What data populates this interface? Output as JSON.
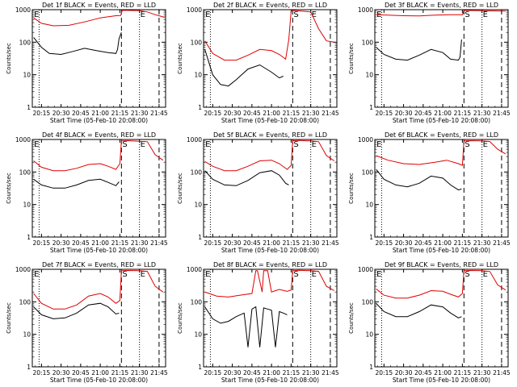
{
  "panel_title_suffix": "BLACK = Events, RED = LLD",
  "xlabel": "Start Time (05-Feb-10 20:08:00)",
  "ylabel": "Counts/sec",
  "x_tick_labels": [
    "20:15",
    "20:30",
    "20:45",
    "21:00",
    "21:15",
    "21:30",
    "21:45"
  ],
  "y_tick_labels": [
    "1",
    "10",
    "100",
    "1000"
  ],
  "marker_labels": [
    "E",
    "S",
    "E"
  ],
  "colors": {
    "events": "#000000",
    "lld": "#e00000"
  },
  "chart_data": [
    {
      "type": "line",
      "title": "Det 1f",
      "xlim": [
        20.1333,
        21.8333
      ],
      "ylim": [
        1,
        1000
      ],
      "log_y": true,
      "x_ticks": [
        20.25,
        20.5,
        20.75,
        21.0,
        21.25,
        21.5,
        21.75
      ],
      "x_tick_labels": [
        "20:15",
        "20:30",
        "20:45",
        "21:00",
        "21:15",
        "21:30",
        "21:45"
      ],
      "y_ticks": [
        1,
        10,
        100,
        1000
      ],
      "markers": {
        "dotted": [
          20.22,
          21.5
        ],
        "dashed": [
          21.27,
          21.75
        ]
      },
      "marker_labels": [
        {
          "x": 20.145,
          "text": "E"
        },
        {
          "x": 21.5,
          "text": "E"
        }
      ],
      "series": [
        {
          "name": "Events",
          "color": "#000000",
          "x": [
            20.15,
            20.25,
            20.35,
            20.5,
            20.65,
            20.8,
            20.95,
            21.1,
            21.2,
            21.22,
            21.24,
            21.27
          ],
          "y": [
            140,
            70,
            45,
            42,
            52,
            65,
            55,
            48,
            45,
            60,
            130,
            200
          ]
        },
        {
          "name": "LLD",
          "color": "#e00000",
          "x": [
            20.15,
            20.25,
            20.4,
            20.6,
            20.8,
            21.0,
            21.2,
            21.26,
            21.28,
            21.35,
            21.5,
            21.6,
            21.7,
            21.78,
            21.82
          ],
          "y": [
            560,
            380,
            320,
            330,
            420,
            560,
            650,
            660,
            950,
            950,
            930,
            850,
            700,
            620,
            580
          ]
        }
      ]
    },
    {
      "type": "line",
      "title": "Det 2f",
      "xlim": [
        20.1333,
        21.8333
      ],
      "ylim": [
        1,
        1000
      ],
      "log_y": true,
      "x_ticks": [
        20.25,
        20.5,
        20.75,
        21.0,
        21.25,
        21.5,
        21.75
      ],
      "x_tick_labels": [
        "20:15",
        "20:30",
        "20:45",
        "21:00",
        "21:15",
        "21:30",
        "21:45"
      ],
      "y_ticks": [
        1,
        10,
        100,
        1000
      ],
      "markers": {
        "dotted": [
          20.22,
          21.5
        ],
        "dashed": [
          21.27,
          21.75
        ]
      },
      "marker_labels": [
        {
          "x": 20.145,
          "text": "E"
        },
        {
          "x": 21.27,
          "text": "S"
        },
        {
          "x": 21.5,
          "text": "E"
        }
      ],
      "series": [
        {
          "name": "Events",
          "color": "#000000",
          "x": [
            20.15,
            20.25,
            20.35,
            20.45,
            20.55,
            20.7,
            20.85,
            21.0,
            21.1,
            21.15
          ],
          "y": [
            60,
            10,
            5,
            4.5,
            7,
            15,
            20,
            12,
            8,
            9
          ]
        },
        {
          "name": "LLD",
          "color": "#e00000",
          "x": [
            20.15,
            20.25,
            20.4,
            20.55,
            20.7,
            20.85,
            21.0,
            21.1,
            21.18,
            21.22,
            21.25,
            21.27,
            21.35,
            21.5,
            21.6,
            21.7,
            21.8
          ],
          "y": [
            110,
            45,
            28,
            28,
            40,
            60,
            55,
            42,
            30,
            120,
            900,
            950,
            920,
            850,
            260,
            110,
            100
          ]
        }
      ]
    },
    {
      "type": "line",
      "title": "Det 3f",
      "xlim": [
        20.1333,
        21.8333
      ],
      "ylim": [
        1,
        1000
      ],
      "log_y": true,
      "x_ticks": [
        20.25,
        20.5,
        20.75,
        21.0,
        21.25,
        21.5,
        21.75
      ],
      "x_tick_labels": [
        "20:15",
        "20:30",
        "20:45",
        "21:00",
        "21:15",
        "21:30",
        "21:45"
      ],
      "y_ticks": [
        1,
        10,
        100,
        1000
      ],
      "markers": {
        "dotted": [
          20.22,
          21.5
        ],
        "dashed": [
          21.27,
          21.75
        ]
      },
      "marker_labels": [
        {
          "x": 20.145,
          "text": "E"
        },
        {
          "x": 21.27,
          "text": "S"
        },
        {
          "x": 21.5,
          "text": "E"
        }
      ],
      "series": [
        {
          "name": "Events",
          "color": "#000000",
          "x": [
            20.15,
            20.25,
            20.4,
            20.55,
            20.7,
            20.85,
            21.0,
            21.1,
            21.2,
            21.22,
            21.24
          ],
          "y": [
            70,
            42,
            30,
            28,
            40,
            60,
            48,
            30,
            28,
            35,
            120
          ]
        },
        {
          "name": "LLD",
          "color": "#e00000",
          "x": [
            20.15,
            20.3,
            20.5,
            20.7,
            20.9,
            21.1,
            21.25,
            21.27,
            21.4,
            21.6,
            21.8
          ],
          "y": [
            700,
            680,
            650,
            640,
            680,
            700,
            700,
            950,
            940,
            920,
            900
          ]
        }
      ]
    },
    {
      "type": "line",
      "title": "Det 4f",
      "xlim": [
        20.1333,
        21.8333
      ],
      "ylim": [
        1,
        1000
      ],
      "log_y": true,
      "x_ticks": [
        20.25,
        20.5,
        20.75,
        21.0,
        21.25,
        21.5,
        21.75
      ],
      "x_tick_labels": [
        "20:15",
        "20:30",
        "20:45",
        "21:00",
        "21:15",
        "21:30",
        "21:45"
      ],
      "y_ticks": [
        1,
        10,
        100,
        1000
      ],
      "markers": {
        "dotted": [
          20.22,
          21.5
        ],
        "dashed": [
          21.27,
          21.75
        ]
      },
      "marker_labels": [
        {
          "x": 20.145,
          "text": "E"
        },
        {
          "x": 21.27,
          "text": "S"
        },
        {
          "x": 21.5,
          "text": "E"
        }
      ],
      "series": [
        {
          "name": "Events",
          "color": "#000000",
          "x": [
            20.15,
            20.25,
            20.4,
            20.55,
            20.7,
            20.85,
            21.0,
            21.1,
            21.2,
            21.24
          ],
          "y": [
            60,
            40,
            32,
            32,
            40,
            55,
            60,
            48,
            38,
            50
          ]
        },
        {
          "name": "LLD",
          "color": "#e00000",
          "x": [
            20.15,
            20.25,
            20.4,
            20.55,
            20.7,
            20.85,
            21.0,
            21.1,
            21.2,
            21.25,
            21.27,
            21.35,
            21.5,
            21.6,
            21.7,
            21.8
          ],
          "y": [
            220,
            140,
            110,
            110,
            130,
            170,
            180,
            150,
            120,
            180,
            900,
            920,
            880,
            850,
            340,
            230
          ]
        }
      ]
    },
    {
      "type": "line",
      "title": "Det 5f",
      "xlim": [
        20.1333,
        21.8333
      ],
      "ylim": [
        1,
        1000
      ],
      "log_y": true,
      "x_ticks": [
        20.25,
        20.5,
        20.75,
        21.0,
        21.25,
        21.5,
        21.75
      ],
      "x_tick_labels": [
        "20:15",
        "20:30",
        "20:45",
        "21:00",
        "21:15",
        "21:30",
        "21:45"
      ],
      "y_ticks": [
        1,
        10,
        100,
        1000
      ],
      "markers": {
        "dotted": [
          20.22,
          21.5
        ],
        "dashed": [
          21.27,
          21.75
        ]
      },
      "marker_labels": [
        {
          "x": 20.145,
          "text": "E"
        },
        {
          "x": 21.27,
          "text": "S"
        },
        {
          "x": 21.5,
          "text": "E"
        }
      ],
      "series": [
        {
          "name": "Events",
          "color": "#000000",
          "x": [
            20.15,
            20.25,
            20.4,
            20.55,
            20.7,
            20.85,
            21.0,
            21.1,
            21.18,
            21.22
          ],
          "y": [
            110,
            60,
            40,
            38,
            55,
            95,
            110,
            80,
            45,
            40
          ]
        },
        {
          "name": "LLD",
          "color": "#e00000",
          "x": [
            20.15,
            20.25,
            20.4,
            20.55,
            20.7,
            20.85,
            21.0,
            21.1,
            21.2,
            21.25,
            21.27,
            21.35,
            21.5,
            21.6,
            21.7,
            21.8
          ],
          "y": [
            210,
            150,
            110,
            110,
            150,
            220,
            230,
            180,
            120,
            160,
            920,
            930,
            900,
            850,
            320,
            220
          ]
        }
      ]
    },
    {
      "type": "line",
      "title": "Det 6f",
      "xlim": [
        20.1333,
        21.8333
      ],
      "ylim": [
        1,
        1000
      ],
      "log_y": true,
      "x_ticks": [
        20.25,
        20.5,
        20.75,
        21.0,
        21.25,
        21.5,
        21.75
      ],
      "x_tick_labels": [
        "20:15",
        "20:30",
        "20:45",
        "21:00",
        "21:15",
        "21:30",
        "21:45"
      ],
      "y_ticks": [
        1,
        10,
        100,
        1000
      ],
      "markers": {
        "dotted": [
          20.22,
          21.5
        ],
        "dashed": [
          21.27,
          21.75
        ]
      },
      "marker_labels": [
        {
          "x": 20.145,
          "text": "E"
        },
        {
          "x": 21.27,
          "text": "S"
        },
        {
          "x": 21.5,
          "text": "E"
        }
      ],
      "series": [
        {
          "name": "Events",
          "color": "#000000",
          "x": [
            20.15,
            20.25,
            20.4,
            20.55,
            20.7,
            20.85,
            21.0,
            21.1,
            21.2,
            21.24
          ],
          "y": [
            120,
            60,
            40,
            35,
            45,
            75,
            65,
            40,
            28,
            30
          ]
        },
        {
          "name": "LLD",
          "color": "#e00000",
          "x": [
            20.15,
            20.3,
            20.5,
            20.7,
            20.9,
            21.05,
            21.2,
            21.25,
            21.27,
            21.35,
            21.5,
            21.6,
            21.7,
            21.8
          ],
          "y": [
            320,
            230,
            180,
            170,
            200,
            230,
            180,
            160,
            900,
            920,
            900,
            860,
            500,
            360
          ]
        }
      ]
    },
    {
      "type": "line",
      "title": "Det 7f",
      "xlim": [
        20.1333,
        21.8333
      ],
      "ylim": [
        1,
        1000
      ],
      "log_y": true,
      "x_ticks": [
        20.25,
        20.5,
        20.75,
        21.0,
        21.25,
        21.5,
        21.75
      ],
      "x_tick_labels": [
        "20:15",
        "20:30",
        "20:45",
        "21:00",
        "21:15",
        "21:30",
        "21:45"
      ],
      "y_ticks": [
        1,
        10,
        100,
        1000
      ],
      "markers": {
        "dotted": [
          20.22,
          21.5
        ],
        "dashed": [
          21.27,
          21.75
        ]
      },
      "marker_labels": [
        {
          "x": 20.145,
          "text": "E"
        },
        {
          "x": 21.27,
          "text": "S"
        },
        {
          "x": 21.5,
          "text": "E"
        }
      ],
      "series": [
        {
          "name": "Events",
          "color": "#000000",
          "x": [
            20.15,
            20.25,
            20.4,
            20.55,
            20.7,
            20.85,
            21.0,
            21.1,
            21.2,
            21.24
          ],
          "y": [
            70,
            40,
            30,
            32,
            45,
            80,
            90,
            70,
            42,
            45
          ]
        },
        {
          "name": "LLD",
          "color": "#e00000",
          "x": [
            20.15,
            20.25,
            20.4,
            20.55,
            20.7,
            20.85,
            21.0,
            21.1,
            21.2,
            21.25,
            21.27,
            21.35,
            21.5,
            21.6,
            21.7,
            21.8
          ],
          "y": [
            180,
            90,
            60,
            60,
            80,
            150,
            180,
            140,
            90,
            110,
            900,
            920,
            900,
            860,
            300,
            200
          ]
        }
      ]
    },
    {
      "type": "line",
      "title": "Det 8f",
      "xlim": [
        20.1333,
        21.8333
      ],
      "ylim": [
        1,
        1000
      ],
      "log_y": true,
      "x_ticks": [
        20.25,
        20.5,
        20.75,
        21.0,
        21.25,
        21.5,
        21.75
      ],
      "x_tick_labels": [
        "20:15",
        "20:30",
        "20:45",
        "21:00",
        "21:15",
        "21:30",
        "21:45"
      ],
      "y_ticks": [
        1,
        10,
        100,
        1000
      ],
      "markers": {
        "dotted": [
          20.22,
          21.5
        ],
        "dashed": [
          21.27,
          21.75
        ]
      },
      "marker_labels": [
        {
          "x": 20.145,
          "text": "E"
        },
        {
          "x": 21.27,
          "text": "S"
        },
        {
          "x": 21.5,
          "text": "E"
        }
      ],
      "series": [
        {
          "name": "Events",
          "color": "#000000",
          "x": [
            20.15,
            20.25,
            20.35,
            20.45,
            20.55,
            20.65,
            20.7,
            20.75,
            20.8,
            20.85,
            20.9,
            20.95,
            21.0,
            21.05,
            21.1,
            21.15,
            21.2
          ],
          "y": [
            70,
            30,
            22,
            25,
            35,
            45,
            4,
            60,
            70,
            4,
            65,
            60,
            55,
            4,
            50,
            45,
            40
          ]
        },
        {
          "name": "LLD",
          "color": "#e00000",
          "x": [
            20.15,
            20.3,
            20.45,
            20.6,
            20.75,
            20.8,
            20.82,
            20.88,
            20.9,
            20.95,
            21.0,
            21.05,
            21.1,
            21.2,
            21.25,
            21.27,
            21.35,
            21.5,
            21.6,
            21.7,
            21.8
          ],
          "y": [
            200,
            150,
            140,
            160,
            180,
            900,
            900,
            200,
            900,
            900,
            200,
            220,
            240,
            210,
            230,
            900,
            930,
            900,
            860,
            300,
            220
          ]
        }
      ]
    },
    {
      "type": "line",
      "title": "Det 9f",
      "xlim": [
        20.1333,
        21.8333
      ],
      "ylim": [
        1,
        1000
      ],
      "log_y": true,
      "x_ticks": [
        20.25,
        20.5,
        20.75,
        21.0,
        21.25,
        21.5,
        21.75
      ],
      "x_tick_labels": [
        "20:15",
        "20:30",
        "20:45",
        "21:00",
        "21:15",
        "21:30",
        "21:45"
      ],
      "y_ticks": [
        1,
        10,
        100,
        1000
      ],
      "markers": {
        "dotted": [
          20.22,
          21.5
        ],
        "dashed": [
          21.27,
          21.75
        ]
      },
      "marker_labels": [
        {
          "x": 20.145,
          "text": "E"
        },
        {
          "x": 21.27,
          "text": "S"
        },
        {
          "x": 21.5,
          "text": "E"
        }
      ],
      "series": [
        {
          "name": "Events",
          "color": "#000000",
          "x": [
            20.15,
            20.25,
            20.4,
            20.55,
            20.7,
            20.85,
            21.0,
            21.1,
            21.2,
            21.24
          ],
          "y": [
            90,
            50,
            35,
            35,
            50,
            80,
            70,
            45,
            32,
            35
          ]
        },
        {
          "name": "LLD",
          "color": "#e00000",
          "x": [
            20.15,
            20.25,
            20.4,
            20.55,
            20.7,
            20.85,
            21.0,
            21.1,
            21.2,
            21.25,
            21.27,
            21.35,
            21.5,
            21.6,
            21.7,
            21.8
          ],
          "y": [
            250,
            160,
            130,
            130,
            160,
            220,
            210,
            170,
            140,
            180,
            900,
            920,
            900,
            850,
            330,
            230
          ]
        }
      ]
    }
  ]
}
